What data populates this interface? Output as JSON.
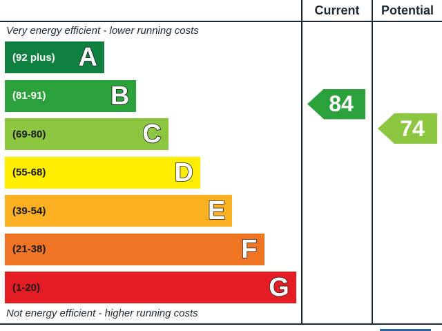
{
  "chart_data": {
    "type": "bar",
    "columns": [
      "Current",
      "Potential"
    ],
    "top_note": "Very energy efficient - lower running costs",
    "bottom_note": "Not energy efficient - higher running costs",
    "bands": [
      {
        "letter": "A",
        "range": "(92 plus)",
        "color": "#0f8040",
        "text_light": true
      },
      {
        "letter": "B",
        "range": "(81-91)",
        "color": "#2aa13b",
        "text_light": true
      },
      {
        "letter": "C",
        "range": "(69-80)",
        "color": "#8dc641",
        "text_light": false
      },
      {
        "letter": "D",
        "range": "(55-68)",
        "color": "#ffee00",
        "text_light": false
      },
      {
        "letter": "E",
        "range": "(39-54)",
        "color": "#fbb021",
        "text_light": false
      },
      {
        "letter": "F",
        "range": "(21-38)",
        "color": "#ef7424",
        "text_light": false
      },
      {
        "letter": "G",
        "range": "(1-20)",
        "color": "#e31d23",
        "text_light": false
      }
    ],
    "ratings": [
      {
        "column": "Current",
        "value": 84,
        "band": "B",
        "color": "#2aa13b"
      },
      {
        "column": "Potential",
        "value": 74,
        "band": "C",
        "color": "#8dc641"
      }
    ]
  }
}
